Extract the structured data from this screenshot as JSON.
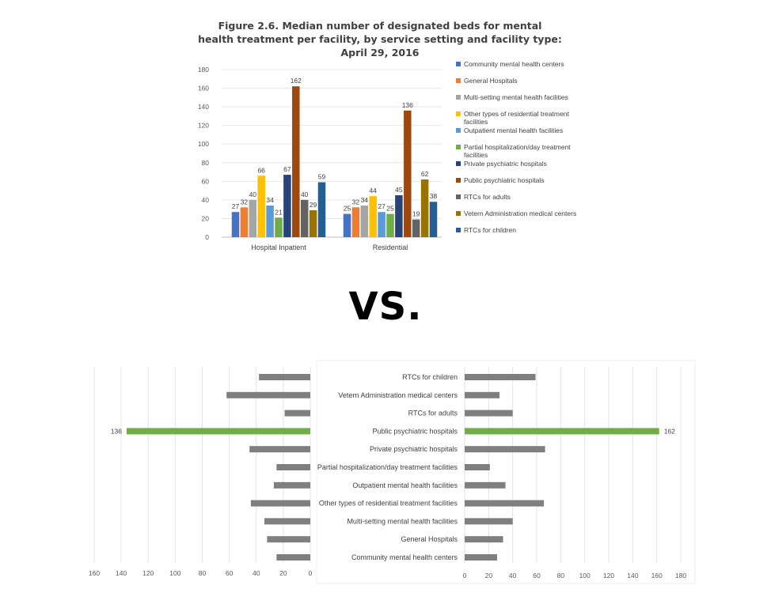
{
  "chart_data": [
    {
      "type": "bar",
      "title_lines": [
        "Figure 2.6. Median number of designated beds for mental",
        "health treatment per facility, by service setting and facility type:",
        "April 29, 2016"
      ],
      "categories": [
        "Hospital Inpatient",
        "Residential"
      ],
      "ylim": [
        0,
        180
      ],
      "yticks": [
        "0",
        "20",
        "40",
        "60",
        "80",
        "100",
        "120",
        "140",
        "160",
        "180"
      ],
      "legend_position": "right",
      "series": [
        {
          "name": "Community mental health centers",
          "color": "#4472c4",
          "values": [
            27,
            25
          ]
        },
        {
          "name": "General Hospitals",
          "color": "#ed7d31",
          "values": [
            32,
            32
          ]
        },
        {
          "name": "Multi-setting mental health facilities",
          "color": "#a5a5a5",
          "values": [
            40,
            34
          ]
        },
        {
          "name": "Other types of residential treatment facilities",
          "color": "#ffc000",
          "values": [
            66,
            44
          ]
        },
        {
          "name": "Outpatient mental health facilities",
          "color": "#5b9bd5",
          "values": [
            34,
            27
          ]
        },
        {
          "name": "Partial hospitalization/day treatment facilities",
          "color": "#70ad47",
          "values": [
            21,
            25
          ]
        },
        {
          "name": "Private psychiatric hospitals",
          "color": "#264478",
          "values": [
            67,
            45
          ]
        },
        {
          "name": "Public psychiatric hospitals",
          "color": "#9e480e",
          "values": [
            162,
            136
          ]
        },
        {
          "name": "RTCs for adults",
          "color": "#636363",
          "values": [
            40,
            19
          ]
        },
        {
          "name": "Vetern Administration medical centers",
          "color": "#997300",
          "values": [
            29,
            62
          ]
        },
        {
          "name": "RTCs for children",
          "color": "#255e91",
          "values": [
            59,
            38
          ]
        }
      ]
    },
    {
      "type": "bar",
      "orientation": "horizontal-butterfly",
      "categories": [
        "RTCs for children",
        "Vetern Administration medical centers",
        "RTCs for adults",
        "Public psychiatric hospitals",
        "Private psychiatric hospitals",
        "Partial hospitalization/day treatment facilities",
        "Outpatient mental health facilities",
        "Other types of residential treatment facilities",
        "Multi-setting mental health facilities",
        "General Hospitals",
        "Community mental health centers"
      ],
      "left_values": [
        38,
        62,
        19,
        136,
        45,
        25,
        27,
        44,
        34,
        32,
        25
      ],
      "right_values": [
        59,
        29,
        40,
        162,
        67,
        21,
        34,
        66,
        40,
        32,
        27
      ],
      "highlight_index": 3,
      "highlight_left_label": "136",
      "highlight_right_label": "162",
      "left_xticks": [
        "160",
        "140",
        "120",
        "100",
        "80",
        "60",
        "40",
        "20",
        "0"
      ],
      "right_xticks": [
        "0",
        "20",
        "40",
        "60",
        "80",
        "100",
        "120",
        "140",
        "160",
        "180"
      ],
      "left_xlim": [
        0,
        160
      ],
      "right_xlim": [
        0,
        180
      ],
      "bar_color": "#7f7f7f",
      "highlight_color": "#70ad47"
    }
  ],
  "vs_text": "VS."
}
